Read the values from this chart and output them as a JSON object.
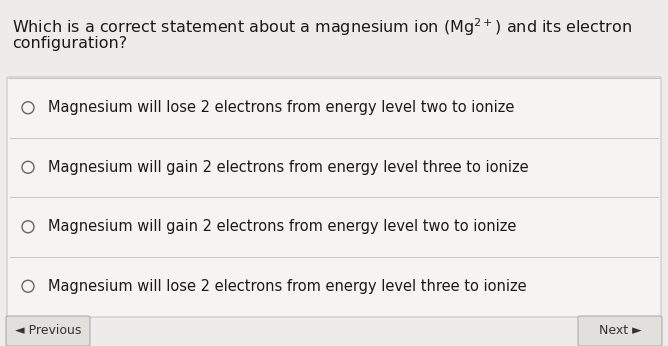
{
  "title_part1": "Which is a correct statement about a magnesium ion (Mg",
  "title_superscript": "2+",
  "title_part2": ") and its electron",
  "title_line2": "configuration?",
  "options": [
    "Magnesium will lose 2 electrons from energy level two to ionize",
    "Magnesium will gain 2 electrons from energy level three to ionize",
    "Magnesium will gain 2 electrons from energy level two to ionize",
    "Magnesium will lose 2 electrons from energy level three to ionize"
  ],
  "bg_color": "#edecea",
  "card_color": "#f5f4f2",
  "text_color": "#1a1a1a",
  "divider_color": "#c8c7c5",
  "radio_color": "#666666",
  "prev_text": "◄ Previous",
  "next_text": "Next ►",
  "button_bg": "#e2e0dd",
  "button_border": "#b0aeac",
  "button_text_color": "#333333",
  "font_size_title": 11.5,
  "font_size_option": 10.5,
  "font_size_button": 9
}
